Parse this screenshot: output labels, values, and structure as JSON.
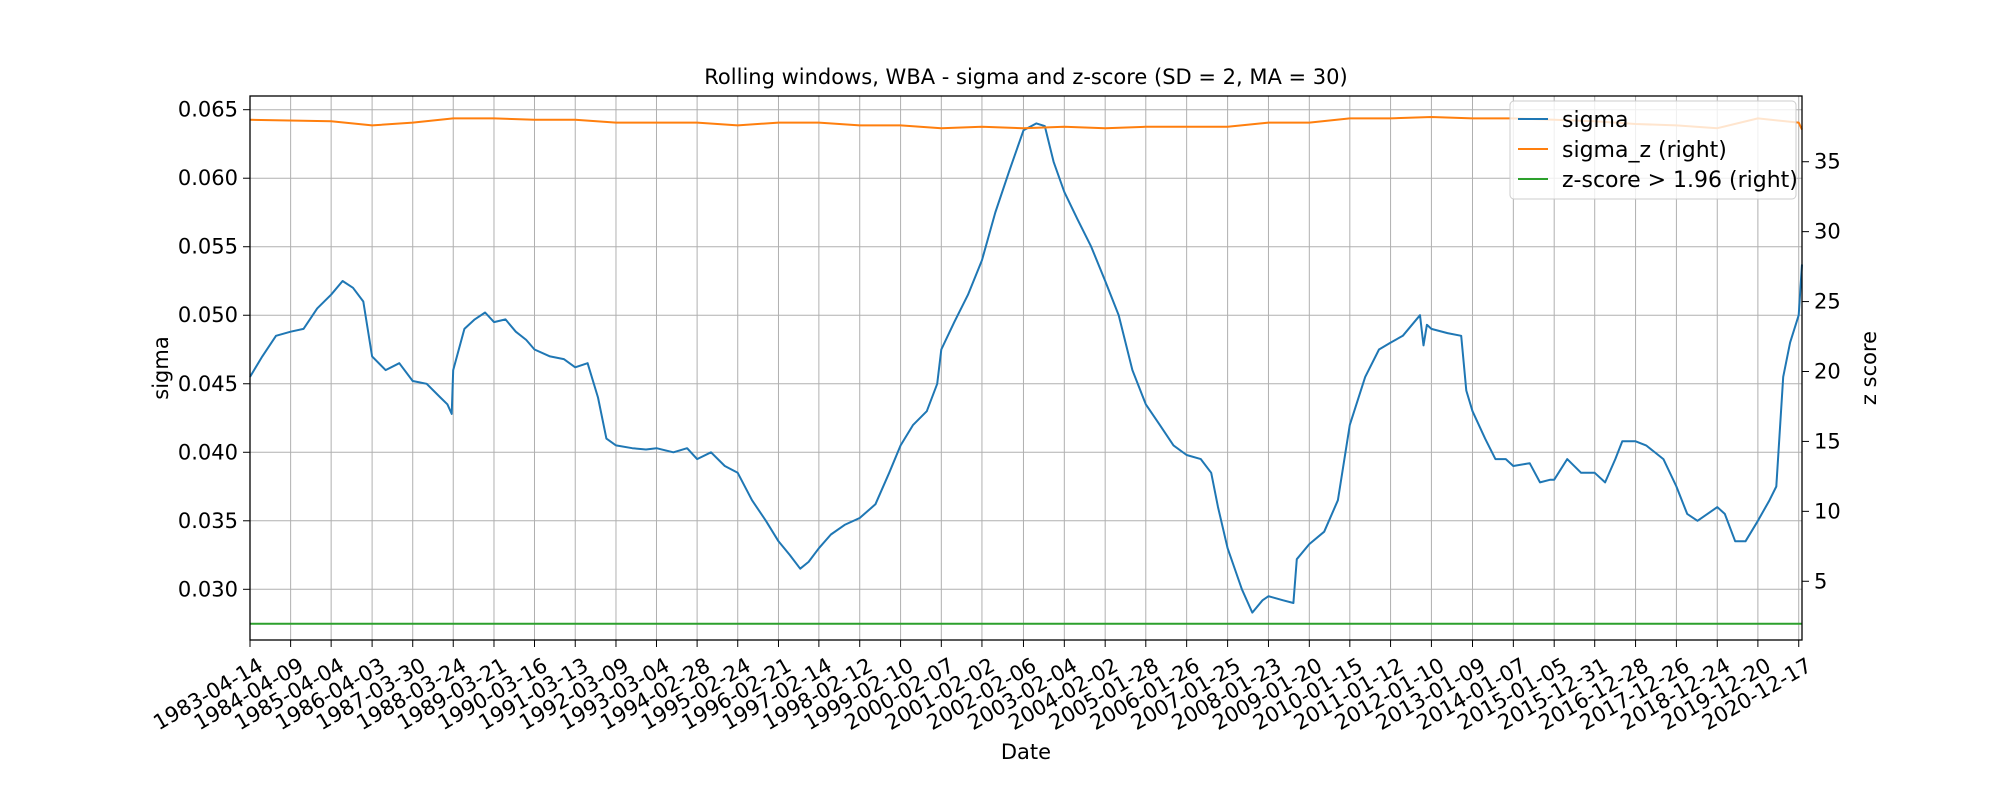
{
  "chart_data": {
    "type": "line",
    "title": "Rolling windows, WBA - sigma and z-score (SD = 2, MA = 30)",
    "xlabel": "Date",
    "ylabel": "sigma",
    "ylabel_right": "z score",
    "x_tick_labels": [
      "1983-04-14",
      "1984-04-09",
      "1985-04-04",
      "1986-04-03",
      "1987-03-30",
      "1988-03-24",
      "1989-03-21",
      "1990-03-16",
      "1991-03-13",
      "1992-03-09",
      "1993-03-04",
      "1994-02-28",
      "1995-02-24",
      "1996-02-21",
      "1997-02-14",
      "1998-02-12",
      "1999-02-10",
      "2000-02-07",
      "2001-02-02",
      "2002-02-06",
      "2003-02-04",
      "2004-02-02",
      "2005-01-28",
      "2006-01-26",
      "2007-01-25",
      "2008-01-23",
      "2009-01-20",
      "2010-01-15",
      "2011-01-12",
      "2012-01-10",
      "2013-01-09",
      "2014-01-07",
      "2015-01-05",
      "2015-12-31",
      "2016-12-28",
      "2017-12-26",
      "2018-12-24",
      "2019-12-20",
      "2020-12-17"
    ],
    "x_range": [
      "1983-04-14",
      "2021-01-15"
    ],
    "ylim": [
      0.0263,
      0.066
    ],
    "yticks": [
      0.03,
      0.035,
      0.04,
      0.045,
      0.05,
      0.055,
      0.06,
      0.065
    ],
    "ytick_labels": [
      "0.030",
      "0.035",
      "0.040",
      "0.045",
      "0.050",
      "0.055",
      "0.060",
      "0.065"
    ],
    "ylim_right": [
      0.8,
      39.7
    ],
    "yticks_right": [
      5,
      10,
      15,
      20,
      25,
      30,
      35
    ],
    "ytick_labels_right": [
      "5",
      "10",
      "15",
      "20",
      "25",
      "30",
      "35"
    ],
    "grid": true,
    "legend_position": "top-right",
    "series": [
      {
        "name": "sigma",
        "axis": "left",
        "color": "#1f77b4",
        "points": [
          [
            "1983-04-14",
            0.0455
          ],
          [
            "1983-08-01",
            0.047
          ],
          [
            "1983-12-01",
            0.0485
          ],
          [
            "1984-04-09",
            0.0488
          ],
          [
            "1984-08-01",
            0.049
          ],
          [
            "1984-12-01",
            0.0505
          ],
          [
            "1985-04-04",
            0.0515
          ],
          [
            "1985-07-15",
            0.0525
          ],
          [
            "1985-10-15",
            0.052
          ],
          [
            "1986-01-15",
            0.051
          ],
          [
            "1986-04-03",
            0.047
          ],
          [
            "1986-08-01",
            0.046
          ],
          [
            "1986-12-01",
            0.0465
          ],
          [
            "1987-03-30",
            0.0452
          ],
          [
            "1987-08-01",
            0.045
          ],
          [
            "1987-12-01",
            0.044
          ],
          [
            "1988-02-01",
            0.0435
          ],
          [
            "1988-03-10",
            0.0428
          ],
          [
            "1988-03-24",
            0.046
          ],
          [
            "1988-07-01",
            0.049
          ],
          [
            "1988-10-01",
            0.0497
          ],
          [
            "1989-01-01",
            0.0502
          ],
          [
            "1989-03-21",
            0.0495
          ],
          [
            "1989-07-01",
            0.0497
          ],
          [
            "1989-10-01",
            0.0488
          ],
          [
            "1990-01-01",
            0.0482
          ],
          [
            "1990-03-16",
            0.0475
          ],
          [
            "1990-08-01",
            0.047
          ],
          [
            "1990-12-01",
            0.0468
          ],
          [
            "1991-03-13",
            0.0462
          ],
          [
            "1991-07-01",
            0.0465
          ],
          [
            "1991-10-01",
            0.044
          ],
          [
            "1991-12-15",
            0.041
          ],
          [
            "1992-03-09",
            0.0405
          ],
          [
            "1992-08-01",
            0.0403
          ],
          [
            "1992-12-01",
            0.0402
          ],
          [
            "1993-03-04",
            0.0403
          ],
          [
            "1993-08-01",
            0.04
          ],
          [
            "1993-12-01",
            0.0403
          ],
          [
            "1994-02-28",
            0.0395
          ],
          [
            "1994-07-01",
            0.04
          ],
          [
            "1994-11-01",
            0.039
          ],
          [
            "1995-02-24",
            0.0385
          ],
          [
            "1995-07-01",
            0.0365
          ],
          [
            "1995-11-01",
            0.035
          ],
          [
            "1996-02-21",
            0.0335
          ],
          [
            "1996-06-01",
            0.0325
          ],
          [
            "1996-09-01",
            0.0315
          ],
          [
            "1996-11-15",
            0.032
          ],
          [
            "1997-02-14",
            0.033
          ],
          [
            "1997-06-01",
            0.034
          ],
          [
            "1997-10-01",
            0.0347
          ],
          [
            "1998-02-12",
            0.0352
          ],
          [
            "1998-07-01",
            0.0362
          ],
          [
            "1998-11-01",
            0.0385
          ],
          [
            "1999-02-10",
            0.0405
          ],
          [
            "1999-06-01",
            0.042
          ],
          [
            "1999-10-01",
            0.043
          ],
          [
            "2000-01-01",
            0.045
          ],
          [
            "2000-02-07",
            0.0475
          ],
          [
            "2000-06-01",
            0.0495
          ],
          [
            "2000-10-01",
            0.0515
          ],
          [
            "2001-02-02",
            0.054
          ],
          [
            "2001-06-01",
            0.0575
          ],
          [
            "2001-10-01",
            0.0605
          ],
          [
            "2002-02-06",
            0.0635
          ],
          [
            "2002-06-01",
            0.064
          ],
          [
            "2002-08-15",
            0.0638
          ],
          [
            "2002-11-01",
            0.0612
          ],
          [
            "2003-02-04",
            0.059
          ],
          [
            "2003-06-01",
            0.057
          ],
          [
            "2003-10-01",
            0.055
          ],
          [
            "2004-02-02",
            0.0525
          ],
          [
            "2004-06-01",
            0.05
          ],
          [
            "2004-10-01",
            0.046
          ],
          [
            "2005-01-28",
            0.0435
          ],
          [
            "2005-06-01",
            0.042
          ],
          [
            "2005-10-01",
            0.0405
          ],
          [
            "2006-01-26",
            0.0398
          ],
          [
            "2006-06-01",
            0.0395
          ],
          [
            "2006-09-01",
            0.0385
          ],
          [
            "2006-11-01",
            0.036
          ],
          [
            "2007-01-25",
            0.033
          ],
          [
            "2007-06-01",
            0.03
          ],
          [
            "2007-09-01",
            0.0283
          ],
          [
            "2007-12-01",
            0.0292
          ],
          [
            "2008-01-23",
            0.0295
          ],
          [
            "2008-06-01",
            0.0292
          ],
          [
            "2008-09-01",
            0.029
          ],
          [
            "2008-10-01",
            0.0322
          ],
          [
            "2009-01-20",
            0.0333
          ],
          [
            "2009-06-01",
            0.0342
          ],
          [
            "2009-10-01",
            0.0365
          ],
          [
            "2010-01-15",
            0.042
          ],
          [
            "2010-06-01",
            0.0455
          ],
          [
            "2010-10-01",
            0.0475
          ],
          [
            "2011-01-12",
            0.048
          ],
          [
            "2011-05-01",
            0.0485
          ],
          [
            "2011-10-01",
            0.05
          ],
          [
            "2011-11-01",
            0.0478
          ],
          [
            "2011-12-01",
            0.0493
          ],
          [
            "2012-01-10",
            0.049
          ],
          [
            "2012-06-01",
            0.0487
          ],
          [
            "2012-10-01",
            0.0485
          ],
          [
            "2012-11-15",
            0.0445
          ],
          [
            "2013-01-09",
            0.043
          ],
          [
            "2013-05-01",
            0.041
          ],
          [
            "2013-08-01",
            0.0395
          ],
          [
            "2013-11-01",
            0.0395
          ],
          [
            "2014-01-07",
            0.039
          ],
          [
            "2014-06-01",
            0.0392
          ],
          [
            "2014-09-01",
            0.0378
          ],
          [
            "2014-12-01",
            0.038
          ],
          [
            "2015-01-05",
            0.038
          ],
          [
            "2015-05-01",
            0.0395
          ],
          [
            "2015-09-01",
            0.0385
          ],
          [
            "2015-12-31",
            0.0385
          ],
          [
            "2016-04-01",
            0.0378
          ],
          [
            "2016-07-01",
            0.0395
          ],
          [
            "2016-09-01",
            0.0408
          ],
          [
            "2016-12-28",
            0.0408
          ],
          [
            "2017-04-01",
            0.0405
          ],
          [
            "2017-09-01",
            0.0395
          ],
          [
            "2017-12-26",
            0.0375
          ],
          [
            "2018-04-01",
            0.0355
          ],
          [
            "2018-07-01",
            0.035
          ],
          [
            "2018-12-24",
            0.036
          ],
          [
            "2019-03-01",
            0.0355
          ],
          [
            "2019-06-01",
            0.0335
          ],
          [
            "2019-09-01",
            0.0335
          ],
          [
            "2019-12-20",
            0.035
          ],
          [
            "2020-04-01",
            0.0365
          ],
          [
            "2020-06-01",
            0.0375
          ],
          [
            "2020-08-01",
            0.0455
          ],
          [
            "2020-10-01",
            0.048
          ],
          [
            "2020-12-17",
            0.05
          ],
          [
            "2021-01-05",
            0.0525
          ],
          [
            "2021-01-15",
            0.0537
          ]
        ]
      },
      {
        "name": "sigma_z (right)",
        "axis": "right",
        "color": "#ff7f0e",
        "points": [
          [
            "1983-04-14",
            38.0
          ],
          [
            "1985-04-04",
            37.9
          ],
          [
            "1986-04-03",
            37.6
          ],
          [
            "1987-03-30",
            37.8
          ],
          [
            "1988-03-24",
            38.1
          ],
          [
            "1989-03-21",
            38.1
          ],
          [
            "1990-03-16",
            38.0
          ],
          [
            "1991-03-13",
            38.0
          ],
          [
            "1992-03-09",
            37.8
          ],
          [
            "1993-03-04",
            37.8
          ],
          [
            "1994-02-28",
            37.8
          ],
          [
            "1995-02-24",
            37.6
          ],
          [
            "1996-02-21",
            37.8
          ],
          [
            "1997-02-14",
            37.8
          ],
          [
            "1998-02-12",
            37.6
          ],
          [
            "1999-02-10",
            37.6
          ],
          [
            "2000-02-07",
            37.4
          ],
          [
            "2001-02-02",
            37.5
          ],
          [
            "2002-02-06",
            37.4
          ],
          [
            "2003-02-04",
            37.5
          ],
          [
            "2004-02-02",
            37.4
          ],
          [
            "2005-01-28",
            37.5
          ],
          [
            "2006-01-26",
            37.5
          ],
          [
            "2007-01-25",
            37.5
          ],
          [
            "2008-01-23",
            37.8
          ],
          [
            "2009-01-20",
            37.8
          ],
          [
            "2010-01-15",
            38.1
          ],
          [
            "2011-01-12",
            38.1
          ],
          [
            "2012-01-10",
            38.2
          ],
          [
            "2013-01-09",
            38.1
          ],
          [
            "2014-01-07",
            38.1
          ],
          [
            "2015-01-05",
            38.0
          ],
          [
            "2015-12-31",
            37.9
          ],
          [
            "2016-12-28",
            37.7
          ],
          [
            "2017-12-26",
            37.6
          ],
          [
            "2018-12-24",
            37.4
          ],
          [
            "2019-12-20",
            38.1
          ],
          [
            "2020-12-17",
            37.8
          ],
          [
            "2021-01-15",
            37.3
          ]
        ]
      },
      {
        "name": "z-score > 1.96 (right)",
        "axis": "right",
        "color": "#2ca02c",
        "points": [
          [
            "1983-04-14",
            1.96
          ],
          [
            "2021-01-15",
            1.96
          ]
        ]
      }
    ]
  }
}
